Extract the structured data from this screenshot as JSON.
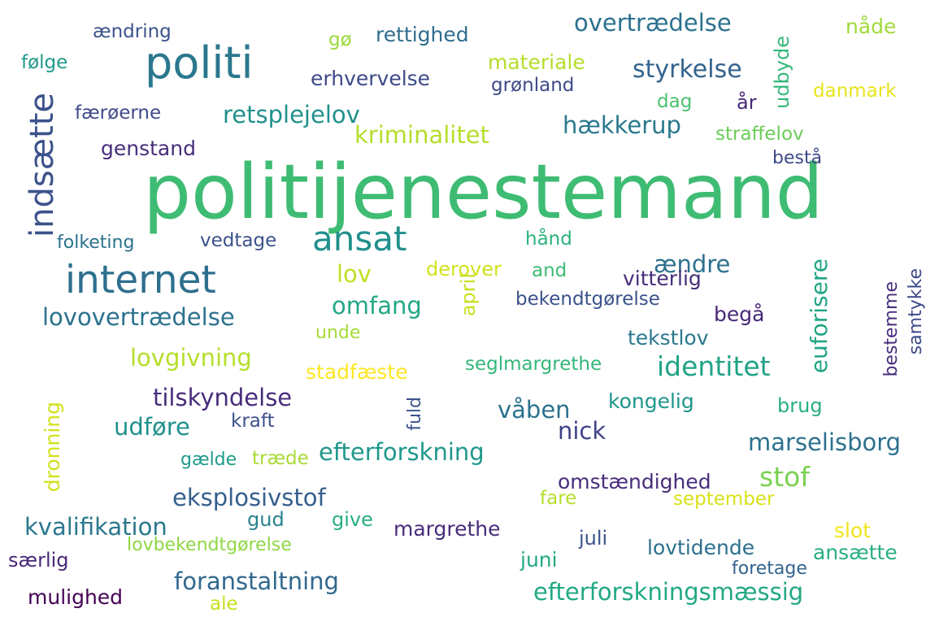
{
  "words": [
    {
      "text": "politijenestemand",
      "color": "#3fbc73"
    },
    {
      "text": "politi",
      "color": "#2a788e"
    },
    {
      "text": "internet",
      "color": "#2e6f8e"
    },
    {
      "text": "indsætte",
      "color": "#3b528b"
    },
    {
      "text": "ansat",
      "color": "#21908d"
    },
    {
      "text": "overtrædelse",
      "color": "#2c718e"
    },
    {
      "text": "rettighed",
      "color": "#2f6c8e"
    },
    {
      "text": "nåde",
      "color": "#a0da39"
    },
    {
      "text": "ændring",
      "color": "#3b528b"
    },
    {
      "text": "gø",
      "color": "#9bd93c"
    },
    {
      "text": "materiale",
      "color": "#b5de2b"
    },
    {
      "text": "følge",
      "color": "#1f9a8a"
    },
    {
      "text": "erhvervelse",
      "color": "#3e4a89"
    },
    {
      "text": "grønland",
      "color": "#3e4a89"
    },
    {
      "text": "styrkelse",
      "color": "#33638d"
    },
    {
      "text": "udbyde",
      "color": "#35b779"
    },
    {
      "text": "danmark",
      "color": "#e7e419"
    },
    {
      "text": "færøerne",
      "color": "#3e4a89"
    },
    {
      "text": "retsplejelov",
      "color": "#21918c"
    },
    {
      "text": "dag",
      "color": "#4ac16d"
    },
    {
      "text": "år",
      "color": "#482878"
    },
    {
      "text": "kriminalitet",
      "color": "#b5de2b"
    },
    {
      "text": "hækkerup",
      "color": "#2a788e"
    },
    {
      "text": "straffelov",
      "color": "#6ccd5a"
    },
    {
      "text": "genstand",
      "color": "#472d7b"
    },
    {
      "text": "bestå",
      "color": "#3e4a89"
    },
    {
      "text": "folketing",
      "color": "#2c728e"
    },
    {
      "text": "vedtage",
      "color": "#3b528b"
    },
    {
      "text": "hånd",
      "color": "#2db27d"
    },
    {
      "text": "derover",
      "color": "#d2e21b"
    },
    {
      "text": "ændre",
      "color": "#2d708e"
    },
    {
      "text": "euforisere",
      "color": "#21a585"
    },
    {
      "text": "lov",
      "color": "#c2df23"
    },
    {
      "text": "and",
      "color": "#3fbc73"
    },
    {
      "text": "vitterlig",
      "color": "#472d7b"
    },
    {
      "text": "april",
      "color": "#c8e020"
    },
    {
      "text": "samtykke",
      "color": "#3e4a89"
    },
    {
      "text": "omfang",
      "color": "#22a884"
    },
    {
      "text": "bekendtgørelse",
      "color": "#3b528b"
    },
    {
      "text": "bestemme",
      "color": "#472d7b"
    },
    {
      "text": "lovovertrædelse",
      "color": "#2c728e"
    },
    {
      "text": "begå",
      "color": "#482878"
    },
    {
      "text": "unde",
      "color": "#a5db36"
    },
    {
      "text": "tekstlov",
      "color": "#2a788e"
    },
    {
      "text": "lovgivning",
      "color": "#b5de2b"
    },
    {
      "text": "identitet",
      "color": "#20a386"
    },
    {
      "text": "stadfæste",
      "color": "#fde725"
    },
    {
      "text": "seglmargrethe",
      "color": "#35b779"
    },
    {
      "text": "tilskyndelse",
      "color": "#472d7b"
    },
    {
      "text": "kongelig",
      "color": "#1f958b"
    },
    {
      "text": "brug",
      "color": "#28ae80"
    },
    {
      "text": "fuld",
      "color": "#3b528b"
    },
    {
      "text": "våben",
      "color": "#2c728e"
    },
    {
      "text": "udføre",
      "color": "#21918c"
    },
    {
      "text": "kraft",
      "color": "#3b528b"
    },
    {
      "text": "nick",
      "color": "#414487"
    },
    {
      "text": "marselisborg",
      "color": "#2c718e"
    },
    {
      "text": "dronning",
      "color": "#d2e21b"
    },
    {
      "text": "efterforskning",
      "color": "#1f988b"
    },
    {
      "text": "gælde",
      "color": "#1f9a8a"
    },
    {
      "text": "træde",
      "color": "#a8db34"
    },
    {
      "text": "omstændighed",
      "color": "#472d7b"
    },
    {
      "text": "stof",
      "color": "#7ad151"
    },
    {
      "text": "eksplosivstof",
      "color": "#355f8d"
    },
    {
      "text": "fare",
      "color": "#b5de2b"
    },
    {
      "text": "september",
      "color": "#d8e219"
    },
    {
      "text": "kvalifikation",
      "color": "#2a788e"
    },
    {
      "text": "gud",
      "color": "#26828e"
    },
    {
      "text": "give",
      "color": "#29af7f"
    },
    {
      "text": "margrethe",
      "color": "#472d7b"
    },
    {
      "text": "slot",
      "color": "#f1e51d"
    },
    {
      "text": "lovbekendtgørelse",
      "color": "#8fd744"
    },
    {
      "text": "juli",
      "color": "#3b528b"
    },
    {
      "text": "lovtidende",
      "color": "#2d708e"
    },
    {
      "text": "ansætte",
      "color": "#29af7f"
    },
    {
      "text": "særlig",
      "color": "#482878"
    },
    {
      "text": "juni",
      "color": "#22a884"
    },
    {
      "text": "foretage",
      "color": "#33638d"
    },
    {
      "text": "foranstaltning",
      "color": "#31688e"
    },
    {
      "text": "mulighed",
      "color": "#440154"
    },
    {
      "text": "ale",
      "color": "#c8e020"
    },
    {
      "text": "efterforskningsmæssig",
      "color": "#22a884"
    }
  ]
}
